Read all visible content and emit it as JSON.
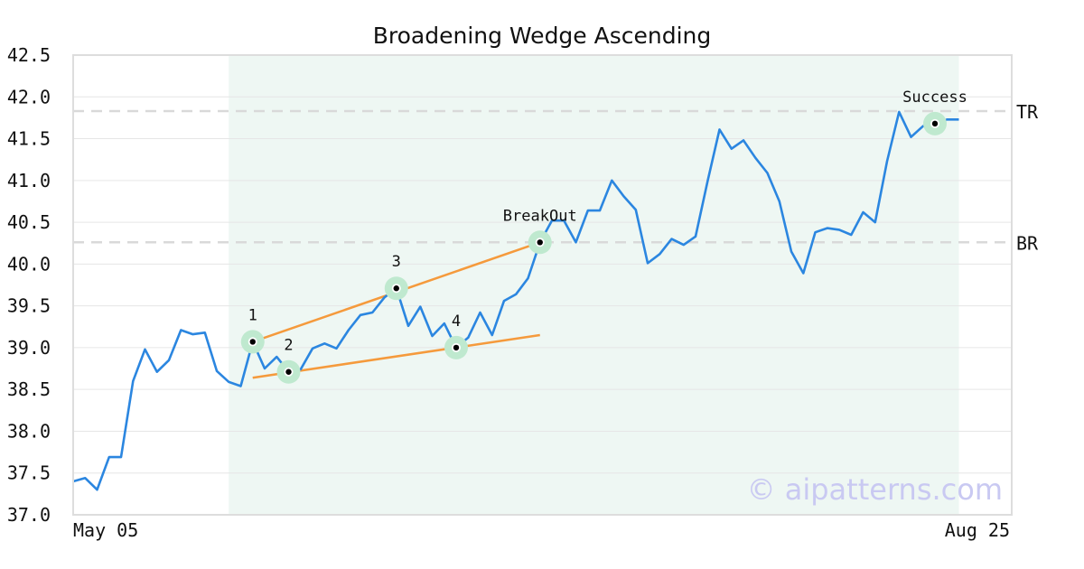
{
  "chart_data": {
    "type": "line",
    "title": "Broadening Wedge Ascending",
    "xlabel": "",
    "ylabel": "",
    "ylim": [
      37.0,
      42.5
    ],
    "yticks": [
      "37.0",
      "37.5",
      "38.0",
      "38.5",
      "39.0",
      "39.5",
      "40.0",
      "40.5",
      "41.0",
      "41.5",
      "42.0",
      "42.5"
    ],
    "x_tick_labels": [
      {
        "index": 0,
        "label": "May 05"
      },
      {
        "index": 78,
        "label": "Aug 25"
      }
    ],
    "grid": true,
    "colors": {
      "price": "#2b86e0",
      "trendline": "#f59a3c",
      "highlight_band": "#eef7f3",
      "marker_halo": "#bfe9cf",
      "level_line": "#d9d9d9"
    },
    "series": [
      {
        "values": [
          37.4,
          37.44,
          37.3,
          37.69,
          37.69,
          38.6,
          38.98,
          38.71,
          38.85,
          39.21,
          39.16,
          39.18,
          38.72,
          38.59,
          38.54,
          39.07,
          38.75,
          38.89,
          38.71,
          38.74,
          38.99,
          39.05,
          38.99,
          39.21,
          39.39,
          39.42,
          39.6,
          39.71,
          39.26,
          39.49,
          39.14,
          39.29,
          39.0,
          39.12,
          39.42,
          39.15,
          39.56,
          39.64,
          39.83,
          40.26,
          40.52,
          40.52,
          40.26,
          40.64,
          40.64,
          41.0,
          40.81,
          40.65,
          40.01,
          40.12,
          40.3,
          40.23,
          40.33,
          40.99,
          41.61,
          41.38,
          41.48,
          41.27,
          41.09,
          40.75,
          40.15,
          39.89,
          40.38,
          40.43,
          40.41,
          40.35,
          40.62,
          40.5,
          41.23,
          41.82,
          41.52,
          41.65,
          41.68,
          41.73,
          41.73
        ]
      }
    ],
    "highlight_range": {
      "start_index": 13,
      "end_index": 74
    },
    "levels": [
      {
        "label": "TR",
        "value": 41.83
      },
      {
        "label": "BR",
        "value": 40.26
      }
    ],
    "trendlines": [
      {
        "from": {
          "index": 15,
          "value": 39.07
        },
        "to": {
          "index": 39,
          "value": 40.26
        }
      },
      {
        "from": {
          "index": 15,
          "value": 38.64
        },
        "to": {
          "index": 39,
          "value": 39.15
        }
      }
    ],
    "markers": [
      {
        "label": "1",
        "index": 15,
        "value": 39.07
      },
      {
        "label": "2",
        "index": 18,
        "value": 38.71
      },
      {
        "label": "3",
        "index": 27,
        "value": 39.71
      },
      {
        "label": "4",
        "index": 32,
        "value": 39.0
      },
      {
        "label": "BreakOut",
        "index": 39,
        "value": 40.26
      },
      {
        "label": "Success",
        "index": 72,
        "value": 41.68
      }
    ],
    "watermark": "© aipatterns.com"
  }
}
